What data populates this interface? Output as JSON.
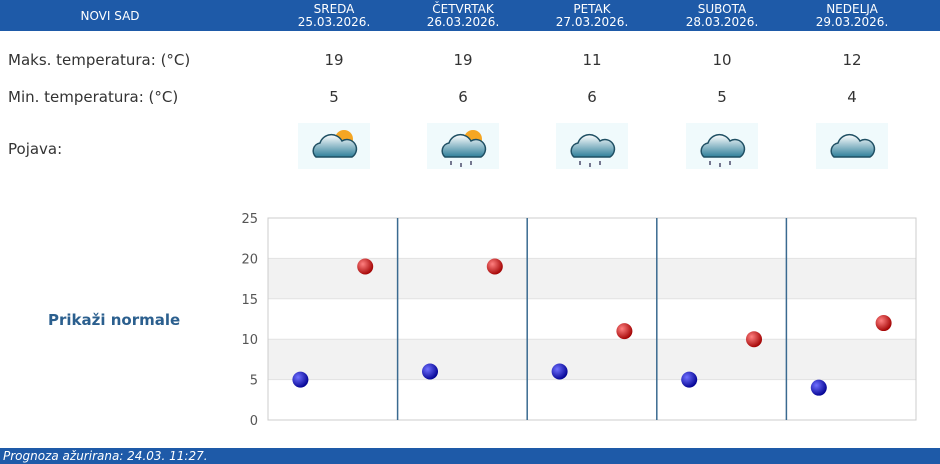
{
  "header": {
    "city": "NOVI SAD"
  },
  "days": [
    {
      "name": "SREDA",
      "date": "25.03.2026.",
      "max": "19",
      "min": "5",
      "icon": "partly-cloudy-icon"
    },
    {
      "name": "ČETVRTAK",
      "date": "26.03.2026.",
      "max": "19",
      "min": "6",
      "icon": "partly-cloudy-light-rain-icon"
    },
    {
      "name": "PETAK",
      "date": "27.03.2026.",
      "max": "11",
      "min": "6",
      "icon": "rain-icon"
    },
    {
      "name": "SUBOTA",
      "date": "28.03.2026.",
      "max": "10",
      "min": "5",
      "icon": "rain-icon"
    },
    {
      "name": "NEDELJA",
      "date": "29.03.2026.",
      "max": "12",
      "min": "4",
      "icon": "cloudy-icon"
    }
  ],
  "labels": {
    "max": "Maks. temperatura: (°C)",
    "min": "Min. temperatura: (°C)",
    "phenomenon": "Pojava:"
  },
  "normals_link": "Prikaži normale",
  "footer": "Prognoza ažurirana:  24.03. 11:27.",
  "colors": {
    "header": "#1e5aa8",
    "max_point": "#cc0000",
    "min_point": "#0a0ab0"
  },
  "chart_data": {
    "type": "scatter",
    "ylim": [
      0,
      25
    ],
    "yticks": [
      "0",
      "5",
      "10",
      "15",
      "20",
      "25"
    ],
    "series": [
      {
        "values": [
          19,
          19,
          11,
          10,
          12
        ],
        "color": "#cc0000"
      },
      {
        "values": [
          5,
          6,
          6,
          5,
          4
        ],
        "color": "#0a0ab0"
      }
    ]
  }
}
